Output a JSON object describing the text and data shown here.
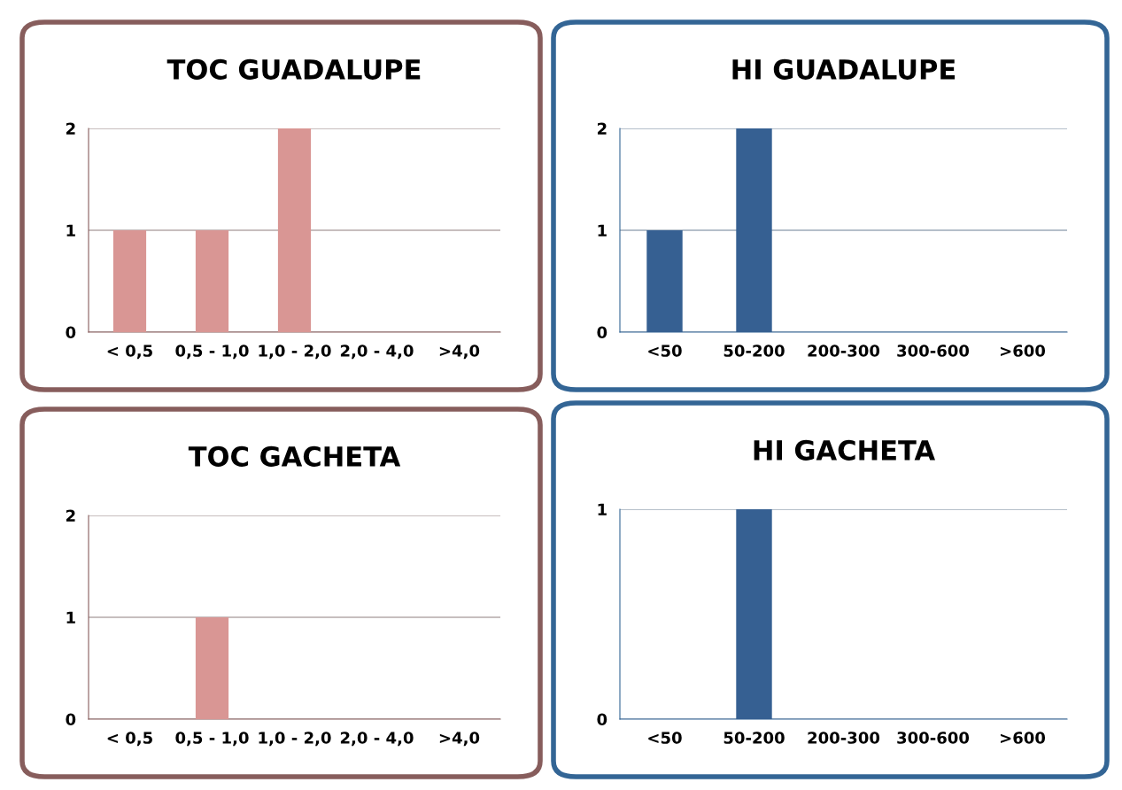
{
  "chart_data": [
    {
      "type": "bar",
      "title": "TOC GUADALUPE",
      "categories": [
        "< 0,5",
        "0,5 - 1,0",
        "1,0 - 2,0",
        "2,0 - 4,0",
        ">4,0"
      ],
      "values": [
        1,
        1,
        2,
        0,
        0
      ],
      "color": "#d99694",
      "ylim": [
        0,
        2
      ],
      "yticks": [
        0,
        1,
        2
      ],
      "grid": "y"
    },
    {
      "type": "bar",
      "title": "HI GUADALUPE",
      "categories": [
        "<50",
        "50-200",
        "200-300",
        "300-600",
        ">600"
      ],
      "values": [
        1,
        2,
        0,
        0,
        0
      ],
      "color": "#366092",
      "ylim": [
        0,
        2
      ],
      "yticks": [
        0,
        1,
        2
      ],
      "grid": "y"
    },
    {
      "type": "bar",
      "title": "TOC GACHETA",
      "categories": [
        "< 0,5",
        "0,5 - 1,0",
        "1,0 - 2,0",
        "2,0 - 4,0",
        ">4,0"
      ],
      "values": [
        0,
        1,
        0,
        0,
        0
      ],
      "color": "#d99694",
      "ylim": [
        0,
        2
      ],
      "yticks": [
        0,
        1,
        2
      ],
      "grid": "y"
    },
    {
      "type": "bar",
      "title": "HI GACHETA",
      "categories": [
        "<50",
        "50-200",
        "200-300",
        "300-600",
        ">600"
      ],
      "values": [
        0,
        1,
        0,
        0,
        0
      ],
      "color": "#366092",
      "ylim": [
        0,
        1
      ],
      "yticks": [
        0,
        1
      ],
      "grid": "y"
    }
  ]
}
